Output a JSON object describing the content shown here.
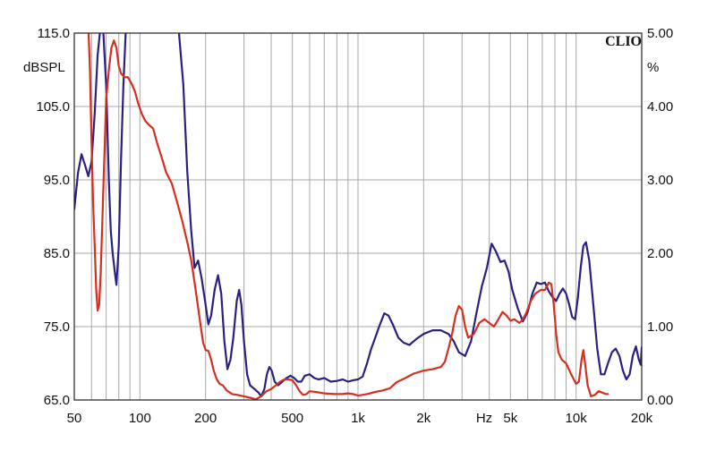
{
  "chart_data": {
    "type": "line",
    "xscale": "log",
    "xlim": [
      50,
      20000
    ],
    "ylim_left": [
      65,
      115
    ],
    "ylim_right": [
      0,
      5
    ],
    "grid": true,
    "brand": "CLIO",
    "ylabel_left": "dBSPL",
    "ylabel_right": "%",
    "xunit": "Hz",
    "left_ticks": [
      "115.0",
      "105.0",
      "95.0",
      "85.0",
      "75.0",
      "65.0"
    ],
    "right_ticks": [
      "5.00",
      "4.00",
      "3.00",
      "2.00",
      "1.00",
      "0.00"
    ],
    "x_ticks": [
      {
        "value": 50,
        "label": "50"
      },
      {
        "value": 100,
        "label": "100"
      },
      {
        "value": 200,
        "label": "200"
      },
      {
        "value": 500,
        "label": "500"
      },
      {
        "value": 1000,
        "label": "1k"
      },
      {
        "value": 2000,
        "label": "2k"
      },
      {
        "value": 5000,
        "label": "5k"
      },
      {
        "value": 10000,
        "label": "10k"
      },
      {
        "value": 20000,
        "label": "20k"
      }
    ],
    "series": [
      {
        "color": "#2a2080",
        "axis": "left",
        "points": [
          [
            50,
            91
          ],
          [
            52,
            96
          ],
          [
            54,
            98.5
          ],
          [
            56,
            97
          ],
          [
            58,
            95.5
          ],
          [
            60,
            97.5
          ],
          [
            62,
            104
          ],
          [
            64,
            112
          ],
          [
            66,
            116
          ],
          [
            68,
            115
          ],
          [
            70,
            108
          ],
          [
            72,
            95
          ],
          [
            73.5,
            88
          ],
          [
            75,
            85
          ],
          [
            77,
            82
          ],
          [
            78,
            80.7
          ],
          [
            80,
            86
          ],
          [
            82,
            98
          ],
          [
            84,
            108
          ],
          [
            86,
            115
          ],
          [
            90,
            116
          ],
          [
            130,
            116
          ],
          [
            150,
            116
          ],
          [
            158,
            108
          ],
          [
            165,
            96
          ],
          [
            172,
            88
          ],
          [
            178,
            83
          ],
          [
            185,
            84
          ],
          [
            192,
            81.5
          ],
          [
            200,
            78
          ],
          [
            206,
            75.3
          ],
          [
            212,
            76.5
          ],
          [
            220,
            80
          ],
          [
            228,
            82
          ],
          [
            236,
            79.5
          ],
          [
            244,
            73
          ],
          [
            252,
            69.2
          ],
          [
            260,
            70.5
          ],
          [
            268,
            73.5
          ],
          [
            278,
            78.5
          ],
          [
            285,
            80
          ],
          [
            292,
            78
          ],
          [
            300,
            73
          ],
          [
            310,
            68.5
          ],
          [
            320,
            67
          ],
          [
            335,
            66.5
          ],
          [
            350,
            66
          ],
          [
            360,
            65.5
          ],
          [
            372,
            66.5
          ],
          [
            382,
            68.5
          ],
          [
            392,
            69.5
          ],
          [
            402,
            69
          ],
          [
            415,
            67.5
          ],
          [
            430,
            67
          ],
          [
            450,
            67.5
          ],
          [
            470,
            68
          ],
          [
            490,
            68.3
          ],
          [
            510,
            68
          ],
          [
            530,
            67.5
          ],
          [
            550,
            67.5
          ],
          [
            570,
            68.3
          ],
          [
            600,
            68.5
          ],
          [
            630,
            68
          ],
          [
            660,
            67.8
          ],
          [
            700,
            68
          ],
          [
            750,
            67.5
          ],
          [
            800,
            67.6
          ],
          [
            850,
            67.8
          ],
          [
            900,
            67.5
          ],
          [
            950,
            67.7
          ],
          [
            1000,
            67.8
          ],
          [
            1050,
            68.2
          ],
          [
            1100,
            70
          ],
          [
            1150,
            72
          ],
          [
            1200,
            73.5
          ],
          [
            1250,
            75
          ],
          [
            1320,
            76.8
          ],
          [
            1380,
            76.5
          ],
          [
            1450,
            75.2
          ],
          [
            1530,
            73.5
          ],
          [
            1620,
            72.8
          ],
          [
            1720,
            72.5
          ],
          [
            1850,
            73.3
          ],
          [
            2000,
            74
          ],
          [
            2200,
            74.5
          ],
          [
            2400,
            74.5
          ],
          [
            2600,
            74
          ],
          [
            2750,
            73
          ],
          [
            2900,
            71.5
          ],
          [
            3100,
            71
          ],
          [
            3300,
            73
          ],
          [
            3500,
            77
          ],
          [
            3700,
            80.5
          ],
          [
            3900,
            83
          ],
          [
            4100,
            86.3
          ],
          [
            4300,
            85.2
          ],
          [
            4500,
            83.8
          ],
          [
            4700,
            84
          ],
          [
            4900,
            82.5
          ],
          [
            5100,
            80
          ],
          [
            5400,
            77.5
          ],
          [
            5700,
            75.7
          ],
          [
            6000,
            77
          ],
          [
            6300,
            79.5
          ],
          [
            6600,
            81
          ],
          [
            6900,
            80.8
          ],
          [
            7200,
            81
          ],
          [
            7500,
            79.8
          ],
          [
            7800,
            79
          ],
          [
            8100,
            78.5
          ],
          [
            8400,
            79.5
          ],
          [
            8700,
            80.2
          ],
          [
            9000,
            79.5
          ],
          [
            9300,
            78
          ],
          [
            9600,
            76.3
          ],
          [
            9900,
            76
          ],
          [
            10200,
            79
          ],
          [
            10500,
            83
          ],
          [
            10800,
            86
          ],
          [
            11100,
            86.5
          ],
          [
            11500,
            84
          ],
          [
            12000,
            78
          ],
          [
            12500,
            72
          ],
          [
            13000,
            68.5
          ],
          [
            13500,
            68.5
          ],
          [
            14000,
            70
          ],
          [
            14600,
            71.5
          ],
          [
            15200,
            72
          ],
          [
            15800,
            71
          ],
          [
            16400,
            69
          ],
          [
            17000,
            67.8
          ],
          [
            17600,
            68.5
          ],
          [
            18200,
            71
          ],
          [
            18800,
            72.3
          ],
          [
            19400,
            70.5
          ],
          [
            19800,
            69.8
          ],
          [
            20000,
            72.2
          ]
        ]
      },
      {
        "color": "#d42f1f",
        "axis": "left",
        "points": [
          [
            58,
            116
          ],
          [
            59,
            110
          ],
          [
            60,
            100
          ],
          [
            61,
            92
          ],
          [
            62,
            86
          ],
          [
            63,
            80
          ],
          [
            64,
            77.2
          ],
          [
            65,
            78
          ],
          [
            66,
            82
          ],
          [
            67,
            88
          ],
          [
            68,
            94
          ],
          [
            69,
            100
          ],
          [
            70,
            106
          ],
          [
            72,
            110
          ],
          [
            74,
            113
          ],
          [
            76,
            114
          ],
          [
            78,
            113
          ],
          [
            80,
            110.5
          ],
          [
            82,
            109.5
          ],
          [
            85,
            109
          ],
          [
            88,
            109
          ],
          [
            92,
            108
          ],
          [
            95,
            107
          ],
          [
            98,
            105.5
          ],
          [
            102,
            104
          ],
          [
            106,
            103
          ],
          [
            110,
            102.5
          ],
          [
            115,
            102
          ],
          [
            120,
            100
          ],
          [
            126,
            98
          ],
          [
            132,
            96
          ],
          [
            140,
            94.5
          ],
          [
            148,
            92
          ],
          [
            156,
            89.5
          ],
          [
            165,
            86.5
          ],
          [
            172,
            84
          ],
          [
            178,
            81
          ],
          [
            184,
            78
          ],
          [
            190,
            75
          ],
          [
            195,
            72.8
          ],
          [
            200,
            71.8
          ],
          [
            206,
            71.7
          ],
          [
            212,
            70.5
          ],
          [
            218,
            69
          ],
          [
            225,
            67.8
          ],
          [
            232,
            67.2
          ],
          [
            240,
            67
          ],
          [
            250,
            66.3
          ],
          [
            265,
            65.8
          ],
          [
            280,
            65.7
          ],
          [
            300,
            65.5
          ],
          [
            320,
            65.3
          ],
          [
            340,
            65.1
          ],
          [
            350,
            65.3
          ],
          [
            360,
            65.5
          ],
          [
            380,
            66.2
          ],
          [
            400,
            66.5
          ],
          [
            420,
            67
          ],
          [
            440,
            67.5
          ],
          [
            460,
            67.8
          ],
          [
            480,
            67.8
          ],
          [
            500,
            67.7
          ],
          [
            520,
            67
          ],
          [
            540,
            66.2
          ],
          [
            560,
            65.7
          ],
          [
            580,
            65.8
          ],
          [
            600,
            66.2
          ],
          [
            640,
            66.1
          ],
          [
            700,
            65.9
          ],
          [
            780,
            65.8
          ],
          [
            850,
            65.8
          ],
          [
            900,
            65.9
          ],
          [
            950,
            65.8
          ],
          [
            1000,
            65.6
          ],
          [
            1100,
            65.8
          ],
          [
            1200,
            66.1
          ],
          [
            1300,
            66.3
          ],
          [
            1400,
            66.6
          ],
          [
            1500,
            67.4
          ],
          [
            1650,
            68
          ],
          [
            1800,
            68.6
          ],
          [
            2000,
            69
          ],
          [
            2200,
            69.2
          ],
          [
            2400,
            69.5
          ],
          [
            2500,
            70.2
          ],
          [
            2600,
            72
          ],
          [
            2700,
            74
          ],
          [
            2800,
            76.5
          ],
          [
            2900,
            77.8
          ],
          [
            3000,
            77.3
          ],
          [
            3100,
            75
          ],
          [
            3200,
            73.5
          ],
          [
            3400,
            74
          ],
          [
            3600,
            75.5
          ],
          [
            3800,
            76
          ],
          [
            4000,
            75.5
          ],
          [
            4200,
            75
          ],
          [
            4400,
            76
          ],
          [
            4600,
            77
          ],
          [
            4800,
            76.5
          ],
          [
            5000,
            75.8
          ],
          [
            5200,
            76
          ],
          [
            5500,
            75.5
          ],
          [
            5700,
            76
          ],
          [
            5900,
            76.8
          ],
          [
            6200,
            78.5
          ],
          [
            6500,
            79.5
          ],
          [
            6900,
            80
          ],
          [
            7200,
            80
          ],
          [
            7500,
            81
          ],
          [
            7700,
            80.8
          ],
          [
            7900,
            78
          ],
          [
            8100,
            74
          ],
          [
            8300,
            71.5
          ],
          [
            8600,
            70.5
          ],
          [
            9000,
            70
          ],
          [
            9500,
            68.5
          ],
          [
            10000,
            67.2
          ],
          [
            10300,
            67.5
          ],
          [
            10600,
            70.5
          ],
          [
            10800,
            71.8
          ],
          [
            11000,
            70
          ],
          [
            11300,
            67
          ],
          [
            11700,
            65.5
          ],
          [
            12200,
            65.7
          ],
          [
            12700,
            66.2
          ],
          [
            13200,
            66
          ],
          [
            13700,
            65.8
          ],
          [
            14000,
            65.8
          ]
        ]
      }
    ]
  }
}
